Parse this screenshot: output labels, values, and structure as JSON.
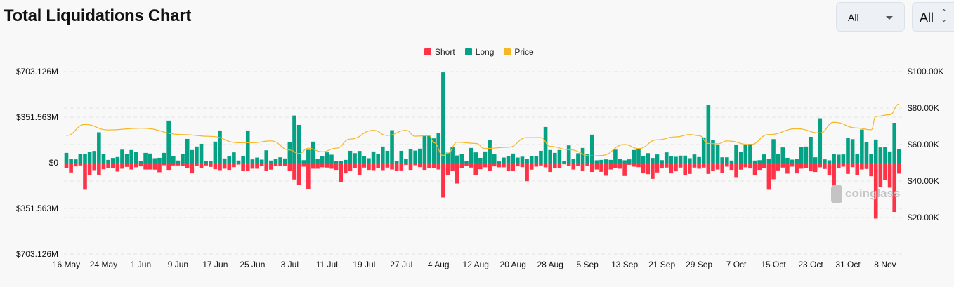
{
  "header": {
    "title": "Total Liquidations Chart"
  },
  "controls": {
    "select1_value": "All",
    "select2_value": "All"
  },
  "watermark": "coinglass",
  "colors": {
    "short": "#ff3347",
    "long": "#05a184",
    "price": "#f5b722",
    "grid": "#e3e3e3"
  },
  "chart_data": {
    "type": "bar",
    "title": "Total Liquidations Chart",
    "legend": {
      "placement": "top-center",
      "entries": [
        "Short",
        "Long",
        "Price"
      ]
    },
    "grid": true,
    "x_ticks": [
      "16 May",
      "24 May",
      "1 Jun",
      "9 Jun",
      "17 Jun",
      "25 Jun",
      "3 Jul",
      "11 Jul",
      "19 Jul",
      "27 Jul",
      "4 Aug",
      "12 Aug",
      "20 Aug",
      "28 Aug",
      "5 Sep",
      "13 Sep",
      "21 Sep",
      "29 Sep",
      "7 Oct",
      "15 Oct",
      "23 Oct",
      "31 Oct",
      "8 Nov"
    ],
    "y_left": {
      "ticks": [
        "$703.126M",
        "$351.563M",
        "$0",
        "$351.563M",
        "$703.126M"
      ],
      "range_musd": [
        -703.126,
        703.126
      ]
    },
    "y_right": {
      "ticks": [
        "$100.00K",
        "$80.00K",
        "$60.00K",
        "$40.00K",
        "$20.00K"
      ],
      "range_kusd": [
        0,
        100
      ]
    },
    "series": [
      {
        "name": "Long",
        "axis": "left",
        "unit": "M USD",
        "values": [
          79,
          32,
          29,
          68,
          72,
          86,
          94,
          238,
          68,
          25,
          40,
          47,
          104,
          72,
          101,
          86,
          14,
          79,
          74,
          38,
          41,
          79,
          328,
          56,
          20,
          70,
          187,
          101,
          128,
          149,
          14,
          18,
          166,
          252,
          36,
          56,
          83,
          20,
          56,
          252,
          29,
          43,
          27,
          99,
          20,
          32,
          45,
          36,
          164,
          367,
          295,
          23,
          103,
          166,
          34,
          56,
          83,
          65,
          18,
          18,
          25,
          95,
          77,
          94,
          54,
          38,
          90,
          68,
          128,
          95,
          254,
          18,
          95,
          34,
          108,
          97,
          112,
          212,
          212,
          191,
          230,
          700,
          81,
          126,
          59,
          72,
          18,
          117,
          83,
          41,
          90,
          176,
          68,
          13,
          43,
          52,
          74,
          43,
          50,
          34,
          52,
          56,
          95,
          279,
          101,
          79,
          101,
          16,
          137,
          31,
          76,
          117,
          70,
          220,
          22,
          25,
          29,
          25,
          104,
          31,
          22,
          29,
          101,
          113,
          52,
          77,
          40,
          67,
          23,
          83,
          56,
          49,
          58,
          58,
          38,
          67,
          47,
          198,
          450,
          176,
          142,
          45,
          45,
          20,
          139,
          85,
          139,
          148,
          20,
          23,
          67,
          32,
          185,
          72,
          121,
          41,
          27,
          34,
          122,
          128,
          203,
          45,
          346,
          29,
          22,
          72,
          65,
          67,
          193,
          185,
          68,
          259,
          162,
          68,
          182,
          121,
          122,
          90,
          311,
          106
        ]
      },
      {
        "name": "Short",
        "axis": "left",
        "unit": "M USD",
        "values": [
          40,
          72,
          25,
          18,
          205,
          90,
          54,
          90,
          47,
          36,
          36,
          65,
          43,
          29,
          49,
          32,
          25,
          49,
          49,
          50,
          70,
          16,
          52,
          18,
          18,
          20,
          36,
          79,
          22,
          40,
          18,
          29,
          47,
          54,
          43,
          52,
          31,
          11,
          61,
          58,
          43,
          43,
          22,
          59,
          50,
          23,
          22,
          20,
          61,
          126,
          169,
          27,
          202,
          43,
          43,
          32,
          34,
          43,
          52,
          144,
          79,
          59,
          36,
          90,
          34,
          52,
          54,
          36,
          54,
          34,
          49,
          61,
          56,
          13,
          52,
          16,
          31,
          52,
          36,
          36,
          49,
          265,
          92,
          59,
          157,
          38,
          22,
          34,
          92,
          47,
          32,
          59,
          25,
          32,
          32,
          61,
          59,
          25,
          31,
          139,
          50,
          27,
          18,
          32,
          68,
          38,
          40,
          9,
          23,
          49,
          20,
          59,
          20,
          68,
          49,
          67,
          97,
          49,
          40,
          43,
          99,
          13,
          27,
          31,
          79,
          85,
          121,
          72,
          41,
          34,
          79,
          63,
          34,
          95,
          83,
          34,
          43,
          34,
          83,
          59,
          49,
          77,
          27,
          52,
          108,
          50,
          32,
          41,
          95,
          52,
          36,
          205,
          124,
          56,
          34,
          81,
          27,
          79,
          43,
          36,
          63,
          68,
          32,
          45,
          95,
          191,
          41,
          27,
          83,
          31,
          92,
          49,
          45,
          101,
          427,
          187,
          130,
          189,
          376,
          81
        ]
      },
      {
        "name": "Price",
        "axis": "right",
        "unit": "K USD",
        "type": "line",
        "points": [
          [
            "16 May",
            65
          ],
          [
            "20 May",
            71
          ],
          [
            "25 May",
            68
          ],
          [
            "1 Jun",
            69
          ],
          [
            "10 Jun",
            65.5
          ],
          [
            "16 Jun",
            64.5
          ],
          [
            "22 Jun",
            61
          ],
          [
            "25 Jun",
            61
          ],
          [
            "29 Jun",
            62
          ],
          [
            "3 Jul",
            57
          ],
          [
            "5 Jul",
            55
          ],
          [
            "7 Jul",
            58
          ],
          [
            "10 Jul",
            56
          ],
          [
            "13 Jul",
            58
          ],
          [
            "16 Jul",
            63
          ],
          [
            "21 Jul",
            67.8
          ],
          [
            "24 Jul",
            65
          ],
          [
            "28 Jul",
            67.8
          ],
          [
            "30 Jul",
            64.6
          ],
          [
            "2 Aug",
            64.9
          ],
          [
            "3 Aug",
            61
          ],
          [
            "5 Aug",
            54
          ],
          [
            "6 Aug",
            55.3
          ],
          [
            "8 Aug",
            61.3
          ],
          [
            "12 Aug",
            60.6
          ],
          [
            "14 Aug",
            57.8
          ],
          [
            "19 Aug",
            58.5
          ],
          [
            "23 Aug",
            63.8
          ],
          [
            "26 Aug",
            63.8
          ],
          [
            "28 Aug",
            59
          ],
          [
            "1 Sep",
            57.2
          ],
          [
            "6 Sep",
            53.7
          ],
          [
            "8 Sep",
            54
          ],
          [
            "13 Sep",
            60
          ],
          [
            "16 Sep",
            57.8
          ],
          [
            "20 Sep",
            62.6
          ],
          [
            "24 Sep",
            64.2
          ],
          [
            "27 Sep",
            65.5
          ],
          [
            "29 Sep",
            64.9
          ],
          [
            "1 Oct",
            60.6
          ],
          [
            "3 Oct",
            60.4
          ],
          [
            "5 Oct",
            62
          ],
          [
            "10 Oct",
            60
          ],
          [
            "14 Oct",
            65.5
          ],
          [
            "20 Oct",
            68.7
          ],
          [
            "25 Oct",
            66.4
          ],
          [
            "28 Oct",
            72.2
          ],
          [
            "2 Nov",
            69.1
          ],
          [
            "5 Nov",
            68.1
          ],
          [
            "6 Nov",
            75.4
          ],
          [
            "9 Nov",
            76.4
          ],
          [
            "11 Nov",
            82.2
          ]
        ]
      }
    ]
  }
}
